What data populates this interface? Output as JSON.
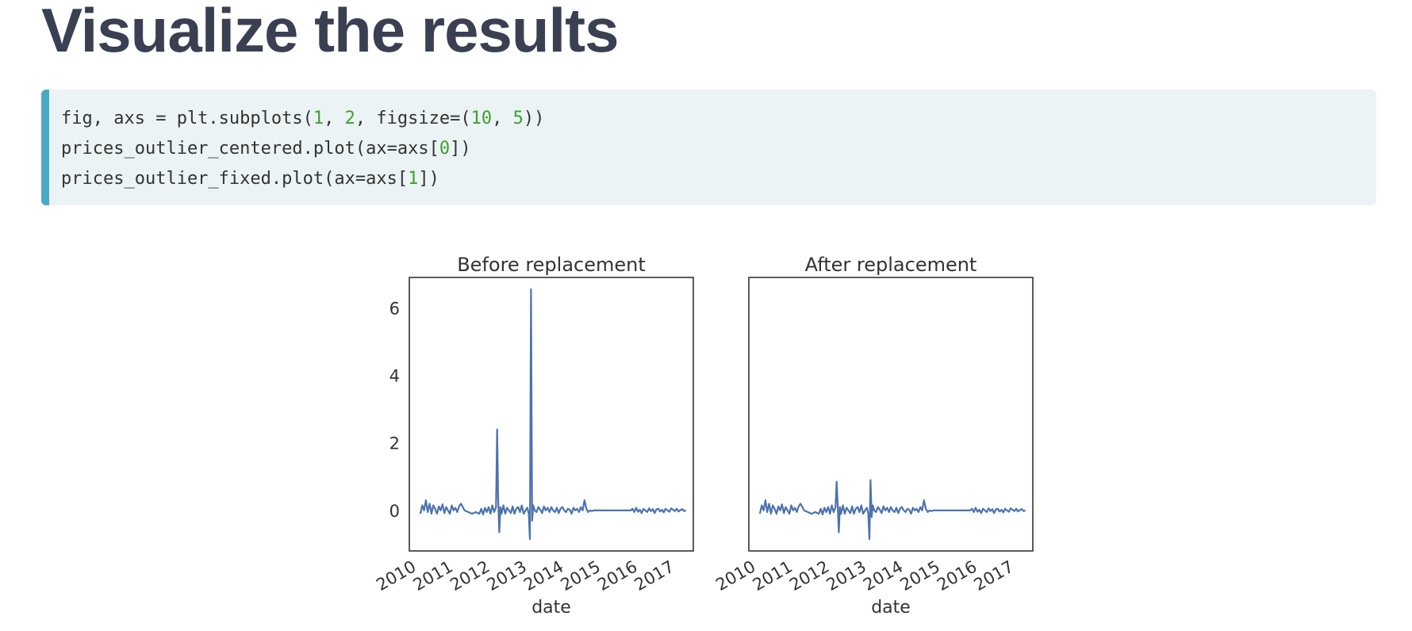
{
  "page": {
    "title": "Visualize the results"
  },
  "code": {
    "lines": [
      [
        {
          "t": "fig, axs = plt.subplots(",
          "c": "p"
        },
        {
          "t": "1",
          "c": "n"
        },
        {
          "t": ", ",
          "c": "p"
        },
        {
          "t": "2",
          "c": "n"
        },
        {
          "t": ", figsize=(",
          "c": "p"
        },
        {
          "t": "10",
          "c": "n"
        },
        {
          "t": ", ",
          "c": "p"
        },
        {
          "t": "5",
          "c": "n"
        },
        {
          "t": "))",
          "c": "p"
        }
      ],
      [
        {
          "t": "prices_outlier_centered.plot(ax=axs[",
          "c": "p"
        },
        {
          "t": "0",
          "c": "n"
        },
        {
          "t": "])",
          "c": "p"
        }
      ],
      [
        {
          "t": "prices_outlier_fixed.plot(ax=axs[",
          "c": "p"
        },
        {
          "t": "1",
          "c": "n"
        },
        {
          "t": "])",
          "c": "p"
        }
      ]
    ]
  },
  "colors": {
    "line": "#4c72b0",
    "axis": "#333333",
    "text": "#333333",
    "number": "#3f9f2e",
    "code_bg": "#ebf3f5",
    "code_border": "#4aa9c5",
    "title": "#3a3f52"
  },
  "chart_data": [
    {
      "type": "line",
      "title": "Before replacement",
      "xlabel": "date",
      "ylabel": "",
      "xlim": [
        2010.0,
        2017.7
      ],
      "ylim": [
        -1.2,
        6.9
      ],
      "xticks": [
        2010,
        2011,
        2012,
        2013,
        2014,
        2015,
        2016,
        2017
      ],
      "xtick_labels": [
        "2010",
        "2011",
        "2012",
        "2013",
        "2014",
        "2015",
        "2016",
        "2017"
      ],
      "yticks": [
        0,
        2,
        4,
        6
      ],
      "ytick_labels": [
        "0",
        "2",
        "4",
        "6"
      ],
      "grid": false,
      "series": [
        {
          "x": [
            2010.3,
            2010.35,
            2010.4,
            2010.45,
            2010.5,
            2010.55,
            2010.6,
            2010.65,
            2010.7,
            2010.75,
            2010.8,
            2010.85,
            2010.9,
            2010.95,
            2011.0,
            2011.05,
            2011.1,
            2011.15,
            2011.2,
            2011.25,
            2011.3,
            2011.35,
            2011.4,
            2011.5,
            2011.6,
            2011.7,
            2011.8,
            2011.9,
            2011.95,
            2012.0,
            2012.05,
            2012.1,
            2012.15,
            2012.2,
            2012.25,
            2012.3,
            2012.35,
            2012.38,
            2012.41,
            2012.44,
            2012.47,
            2012.5,
            2012.55,
            2012.6,
            2012.65,
            2012.7,
            2012.75,
            2012.8,
            2012.85,
            2012.9,
            2012.95,
            2013.0,
            2013.05,
            2013.1,
            2013.15,
            2013.2,
            2013.24,
            2013.27,
            2013.3,
            2013.33,
            2013.36,
            2013.4,
            2013.45,
            2013.5,
            2013.55,
            2013.6,
            2013.65,
            2013.7,
            2013.75,
            2013.8,
            2013.85,
            2013.9,
            2013.95,
            2014.0,
            2014.05,
            2014.1,
            2014.15,
            2014.2,
            2014.25,
            2014.3,
            2014.35,
            2014.4,
            2014.45,
            2014.5,
            2014.55,
            2014.6,
            2014.65,
            2014.7,
            2014.75,
            2014.8,
            2014.85,
            2014.9,
            2014.95,
            2015.0,
            2015.5,
            2016.0,
            2016.05,
            2016.1,
            2016.15,
            2016.2,
            2016.25,
            2016.3,
            2016.35,
            2016.4,
            2016.45,
            2016.5,
            2016.55,
            2016.6,
            2016.65,
            2016.7,
            2016.75,
            2016.8,
            2016.85,
            2016.9,
            2016.95,
            2017.0,
            2017.05,
            2017.1,
            2017.15,
            2017.2,
            2017.25,
            2017.3,
            2017.35,
            2017.4,
            2017.45,
            2017.5
          ],
          "y": [
            -0.1,
            0.15,
            0.0,
            0.3,
            -0.05,
            0.2,
            -0.1,
            0.15,
            0.05,
            -0.1,
            0.12,
            0.0,
            0.18,
            -0.08,
            0.1,
            0.0,
            -0.1,
            0.15,
            0.0,
            0.08,
            -0.05,
            0.12,
            0.2,
            0.0,
            -0.05,
            -0.1,
            -0.05,
            -0.1,
            0.05,
            -0.12,
            0.08,
            -0.05,
            0.1,
            -0.1,
            0.15,
            -0.05,
            0.1,
            2.4,
            0.3,
            -0.65,
            0.1,
            -0.1,
            0.15,
            -0.1,
            0.08,
            0.0,
            -0.08,
            0.12,
            -0.1,
            0.05,
            0.1,
            -0.05,
            0.15,
            -0.1,
            0.0,
            0.08,
            -0.1,
            -0.85,
            6.55,
            -0.3,
            0.15,
            0.0,
            -0.05,
            0.1,
            0.02,
            -0.08,
            0.12,
            0.0,
            0.08,
            -0.05,
            0.1,
            0.0,
            -0.05,
            0.08,
            -0.08,
            0.05,
            0.1,
            0.0,
            -0.05,
            0.05,
            0.02,
            -0.1,
            0.08,
            0.0,
            0.05,
            -0.05,
            0.1,
            0.0,
            0.3,
            0.05,
            -0.05,
            0.0,
            -0.02,
            0.0,
            0.0,
            0.0,
            0.05,
            -0.05,
            0.08,
            -0.04,
            0.02,
            -0.08,
            0.05,
            0.0,
            -0.05,
            0.06,
            -0.02,
            0.04,
            -0.08,
            0.03,
            0.05,
            -0.03,
            0.02,
            -0.06,
            0.05,
            0.0,
            -0.04,
            0.06,
            0.02,
            -0.02,
            0.05,
            -0.03,
            0.01,
            0.04,
            -0.02,
            0.0
          ]
        }
      ]
    },
    {
      "type": "line",
      "title": "After replacement",
      "xlabel": "date",
      "ylabel": "",
      "xlim": [
        2010.0,
        2017.7
      ],
      "ylim": [
        -1.2,
        6.9
      ],
      "xticks": [
        2010,
        2011,
        2012,
        2013,
        2014,
        2015,
        2016,
        2017
      ],
      "xtick_labels": [
        "2010",
        "2011",
        "2012",
        "2013",
        "2014",
        "2015",
        "2016",
        "2017"
      ],
      "yticks": [],
      "ytick_labels": [],
      "grid": false,
      "series": [
        {
          "x": [
            2010.3,
            2010.35,
            2010.4,
            2010.45,
            2010.5,
            2010.55,
            2010.6,
            2010.65,
            2010.7,
            2010.75,
            2010.8,
            2010.85,
            2010.9,
            2010.95,
            2011.0,
            2011.05,
            2011.1,
            2011.15,
            2011.2,
            2011.25,
            2011.3,
            2011.35,
            2011.4,
            2011.5,
            2011.6,
            2011.7,
            2011.8,
            2011.9,
            2011.95,
            2012.0,
            2012.05,
            2012.1,
            2012.15,
            2012.2,
            2012.25,
            2012.3,
            2012.35,
            2012.38,
            2012.41,
            2012.44,
            2012.47,
            2012.5,
            2012.55,
            2012.6,
            2012.65,
            2012.7,
            2012.75,
            2012.8,
            2012.85,
            2012.9,
            2012.95,
            2013.0,
            2013.05,
            2013.1,
            2013.15,
            2013.2,
            2013.24,
            2013.27,
            2013.3,
            2013.33,
            2013.36,
            2013.4,
            2013.45,
            2013.5,
            2013.55,
            2013.6,
            2013.65,
            2013.7,
            2013.75,
            2013.8,
            2013.85,
            2013.9,
            2013.95,
            2014.0,
            2014.05,
            2014.1,
            2014.15,
            2014.2,
            2014.25,
            2014.3,
            2014.35,
            2014.4,
            2014.45,
            2014.5,
            2014.55,
            2014.6,
            2014.65,
            2014.7,
            2014.75,
            2014.8,
            2014.85,
            2014.9,
            2014.95,
            2015.0,
            2015.5,
            2016.0,
            2016.05,
            2016.1,
            2016.15,
            2016.2,
            2016.25,
            2016.3,
            2016.35,
            2016.4,
            2016.45,
            2016.5,
            2016.55,
            2016.6,
            2016.65,
            2016.7,
            2016.75,
            2016.8,
            2016.85,
            2016.9,
            2016.95,
            2017.0,
            2017.05,
            2017.1,
            2017.15,
            2017.2,
            2017.25,
            2017.3,
            2017.35,
            2017.4,
            2017.45,
            2017.5
          ],
          "y": [
            -0.1,
            0.15,
            0.0,
            0.3,
            -0.05,
            0.2,
            -0.1,
            0.15,
            0.05,
            -0.1,
            0.12,
            0.0,
            0.18,
            -0.08,
            0.1,
            0.0,
            -0.1,
            0.15,
            0.0,
            0.08,
            -0.05,
            0.12,
            0.2,
            0.0,
            -0.05,
            -0.1,
            -0.05,
            -0.1,
            0.05,
            -0.12,
            0.08,
            -0.05,
            0.1,
            -0.1,
            0.15,
            -0.05,
            0.1,
            0.85,
            0.2,
            -0.65,
            0.1,
            -0.1,
            0.15,
            -0.1,
            0.08,
            0.0,
            -0.08,
            0.12,
            -0.1,
            0.05,
            0.1,
            -0.05,
            0.15,
            -0.1,
            0.0,
            0.08,
            -0.1,
            -0.85,
            0.9,
            -0.2,
            0.15,
            0.0,
            -0.05,
            0.1,
            0.02,
            -0.08,
            0.12,
            0.0,
            0.08,
            -0.05,
            0.1,
            0.0,
            -0.05,
            0.08,
            -0.08,
            0.05,
            0.1,
            0.0,
            -0.05,
            0.05,
            0.02,
            -0.1,
            0.08,
            0.0,
            0.05,
            -0.05,
            0.1,
            0.0,
            0.3,
            0.05,
            -0.05,
            0.0,
            -0.02,
            0.0,
            0.0,
            0.0,
            0.05,
            -0.05,
            0.08,
            -0.04,
            0.02,
            -0.08,
            0.05,
            0.0,
            -0.05,
            0.06,
            -0.02,
            0.04,
            -0.08,
            0.03,
            0.05,
            -0.03,
            0.02,
            -0.06,
            0.05,
            0.0,
            -0.04,
            0.06,
            0.02,
            -0.02,
            0.05,
            -0.03,
            0.01,
            0.04,
            -0.02,
            0.0
          ]
        }
      ]
    }
  ]
}
